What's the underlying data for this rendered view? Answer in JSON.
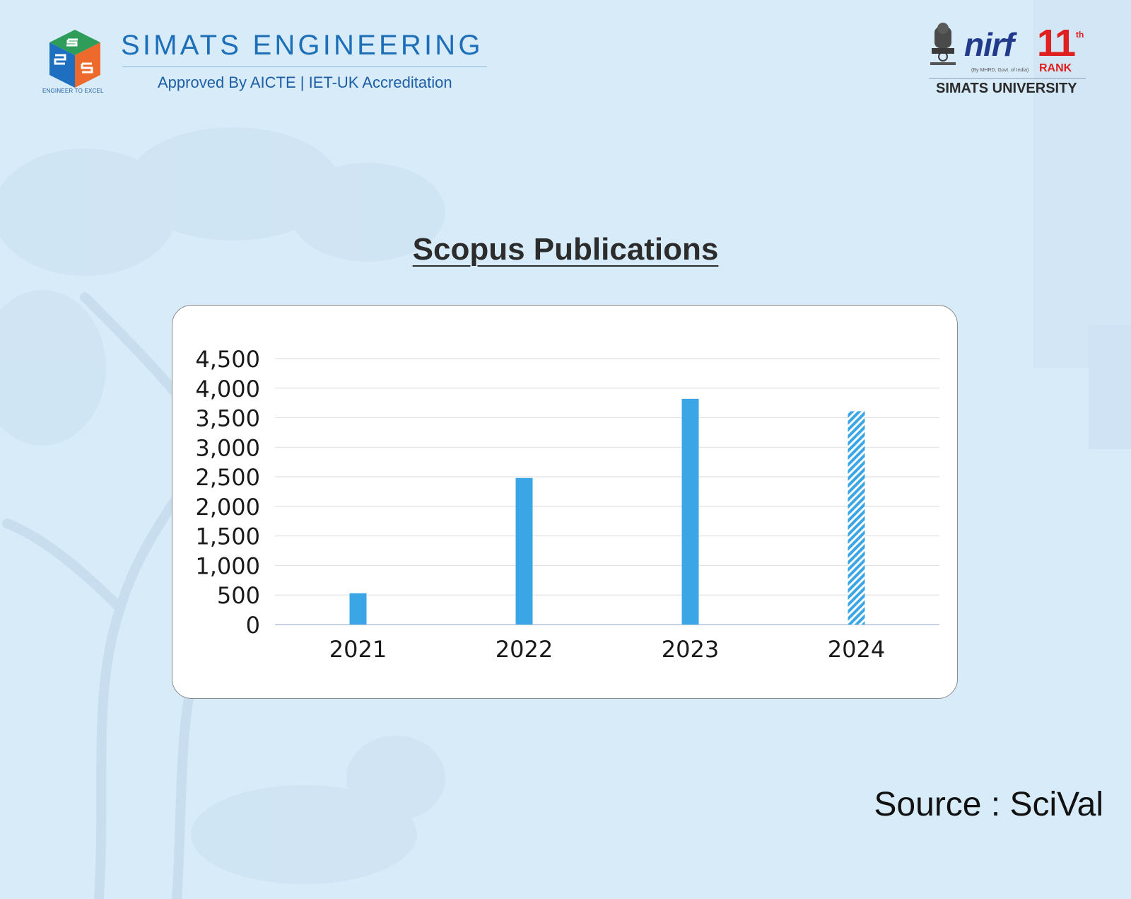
{
  "header": {
    "brand_name": "SIMATS ENGINEERING",
    "brand_tagline": "Approved By AICTE | IET-UK Accreditation",
    "logo_motto": "ENGINEER TO EXCEL",
    "nirf_word": "nirf",
    "nirf_rank_number": "11",
    "nirf_rank_suffix": "th",
    "nirf_rank_label": "RANK",
    "nirf_gov_note": "(By MHRD, Govt. of India)",
    "university_name": "SIMATS UNIVERSITY"
  },
  "page": {
    "title": "Scopus Publications",
    "source": "Source : SciVal"
  },
  "colors": {
    "background": "#d8ebf9",
    "bar": "#3aa6e6",
    "brand_blue": "#1d6fb8",
    "rank_red": "#e02020"
  },
  "chart_data": {
    "type": "bar",
    "categories": [
      "2021",
      "2022",
      "2023",
      "2024"
    ],
    "values": [
      530,
      2480,
      3820,
      3610
    ],
    "hatched": [
      false,
      false,
      false,
      true
    ],
    "title": "",
    "xlabel": "",
    "ylabel": "",
    "ylim": [
      0,
      4500
    ],
    "yticks": [
      0,
      500,
      1000,
      1500,
      2000,
      2500,
      3000,
      3500,
      4000,
      4500
    ],
    "ytick_labels": [
      "0",
      "500",
      "1,000",
      "1,500",
      "2,000",
      "2,500",
      "3,000",
      "3,500",
      "4,000",
      "4,500"
    ],
    "grid": true,
    "legend": "none"
  }
}
